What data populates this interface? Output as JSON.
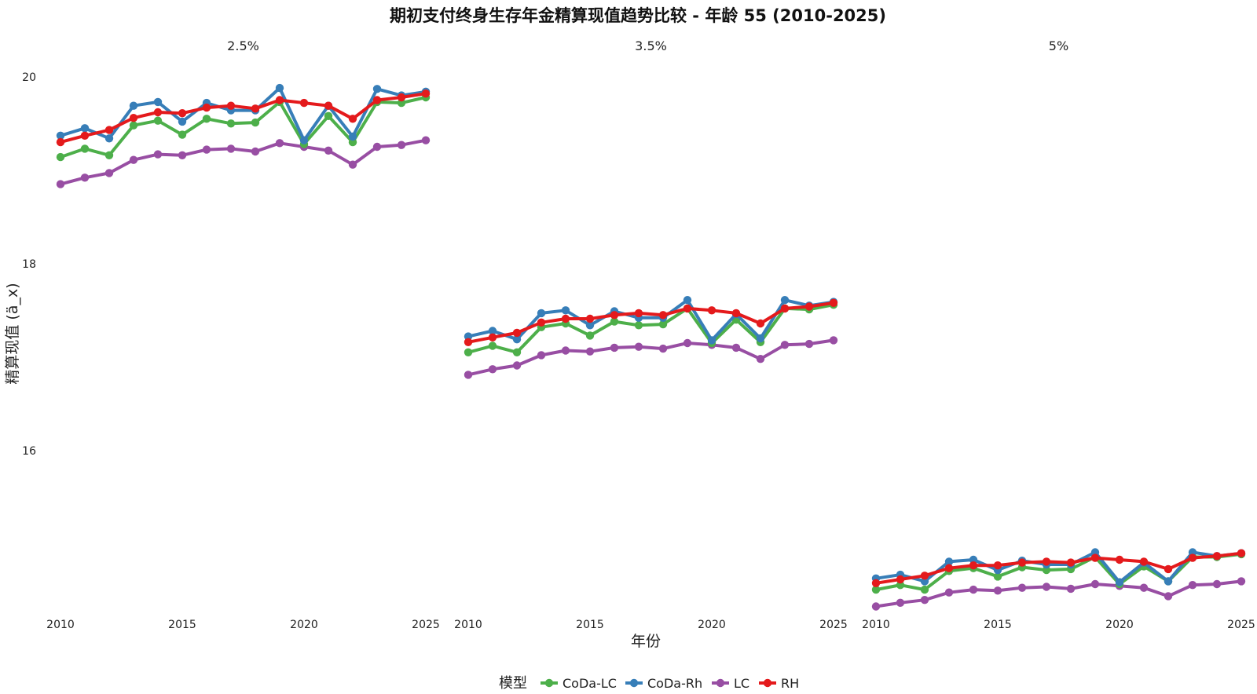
{
  "chart_data": {
    "type": "line",
    "title": "期初支付终身生存年金精算现值趋势比较 - 年龄 55 (2010-2025)",
    "xlabel": "年份",
    "ylabel": "精算现值 (ä_x)",
    "legend_title": "模型",
    "legend_position": "bottom",
    "grid": false,
    "x": [
      2010,
      2011,
      2012,
      2013,
      2014,
      2015,
      2016,
      2017,
      2018,
      2019,
      2020,
      2021,
      2022,
      2023,
      2024,
      2025
    ],
    "x_ticks": [
      "2010",
      "2015",
      "2020",
      "2025"
    ],
    "ylim": [
      14.2,
      20.2
    ],
    "y_ticks": [
      "16",
      "18",
      "20"
    ],
    "colors": {
      "CoDa-LC": "#4daf4a",
      "CoDa-Rh": "#377eb8",
      "LC": "#984ea3",
      "RH": "#e41a1c"
    },
    "legend_order": [
      "CoDa-LC",
      "CoDa-Rh",
      "LC",
      "RH"
    ],
    "facets": [
      {
        "label": "2.5%",
        "series": [
          {
            "name": "LC",
            "values": [
              18.85,
              18.92,
              18.97,
              19.11,
              19.17,
              19.16,
              19.22,
              19.23,
              19.2,
              19.29,
              19.25,
              19.21,
              19.06,
              19.25,
              19.27,
              19.32
            ]
          },
          {
            "name": "CoDa-LC",
            "values": [
              19.14,
              19.23,
              19.16,
              19.48,
              19.53,
              19.38,
              19.55,
              19.5,
              19.51,
              19.73,
              19.28,
              19.58,
              19.3,
              19.73,
              19.72,
              19.78
            ]
          },
          {
            "name": "CoDa-Rh",
            "values": [
              19.37,
              19.45,
              19.34,
              19.69,
              19.73,
              19.52,
              19.72,
              19.64,
              19.64,
              19.88,
              19.32,
              19.69,
              19.36,
              19.87,
              19.8,
              19.84
            ]
          },
          {
            "name": "RH",
            "values": [
              19.3,
              19.37,
              19.43,
              19.56,
              19.62,
              19.61,
              19.67,
              19.69,
              19.66,
              19.75,
              19.72,
              19.69,
              19.55,
              19.75,
              19.78,
              19.82
            ]
          }
        ]
      },
      {
        "label": "3.5%",
        "series": [
          {
            "name": "LC",
            "values": [
              16.81,
              16.87,
              16.91,
              17.02,
              17.07,
              17.06,
              17.1,
              17.11,
              17.09,
              17.15,
              17.13,
              17.1,
              16.98,
              17.13,
              17.14,
              17.18
            ]
          },
          {
            "name": "CoDa-LC",
            "values": [
              17.05,
              17.12,
              17.05,
              17.32,
              17.36,
              17.23,
              17.38,
              17.34,
              17.35,
              17.52,
              17.15,
              17.4,
              17.16,
              17.52,
              17.51,
              17.56
            ]
          },
          {
            "name": "CoDa-Rh",
            "values": [
              17.22,
              17.28,
              17.19,
              17.47,
              17.5,
              17.34,
              17.49,
              17.42,
              17.42,
              17.61,
              17.18,
              17.46,
              17.2,
              17.61,
              17.55,
              17.59
            ]
          },
          {
            "name": "RH",
            "values": [
              17.16,
              17.21,
              17.26,
              17.37,
              17.41,
              17.41,
              17.45,
              17.47,
              17.45,
              17.52,
              17.5,
              17.47,
              17.36,
              17.52,
              17.54,
              17.58
            ]
          }
        ]
      },
      {
        "label": "5%",
        "series": [
          {
            "name": "LC",
            "values": [
              14.33,
              14.37,
              14.4,
              14.48,
              14.51,
              14.5,
              14.53,
              14.54,
              14.52,
              14.57,
              14.55,
              14.53,
              14.44,
              14.56,
              14.57,
              14.6
            ]
          },
          {
            "name": "CoDa-LC",
            "values": [
              14.51,
              14.56,
              14.51,
              14.71,
              14.74,
              14.65,
              14.75,
              14.72,
              14.73,
              14.86,
              14.57,
              14.76,
              14.6,
              14.86,
              14.86,
              14.89
            ]
          },
          {
            "name": "CoDa-Rh",
            "values": [
              14.63,
              14.67,
              14.6,
              14.81,
              14.83,
              14.72,
              14.82,
              14.78,
              14.78,
              14.91,
              14.59,
              14.8,
              14.6,
              14.91,
              14.87,
              14.9
            ]
          },
          {
            "name": "RH",
            "values": [
              14.58,
              14.62,
              14.66,
              14.74,
              14.77,
              14.77,
              14.8,
              14.81,
              14.8,
              14.85,
              14.83,
              14.81,
              14.73,
              14.85,
              14.87,
              14.9
            ]
          }
        ]
      }
    ]
  }
}
